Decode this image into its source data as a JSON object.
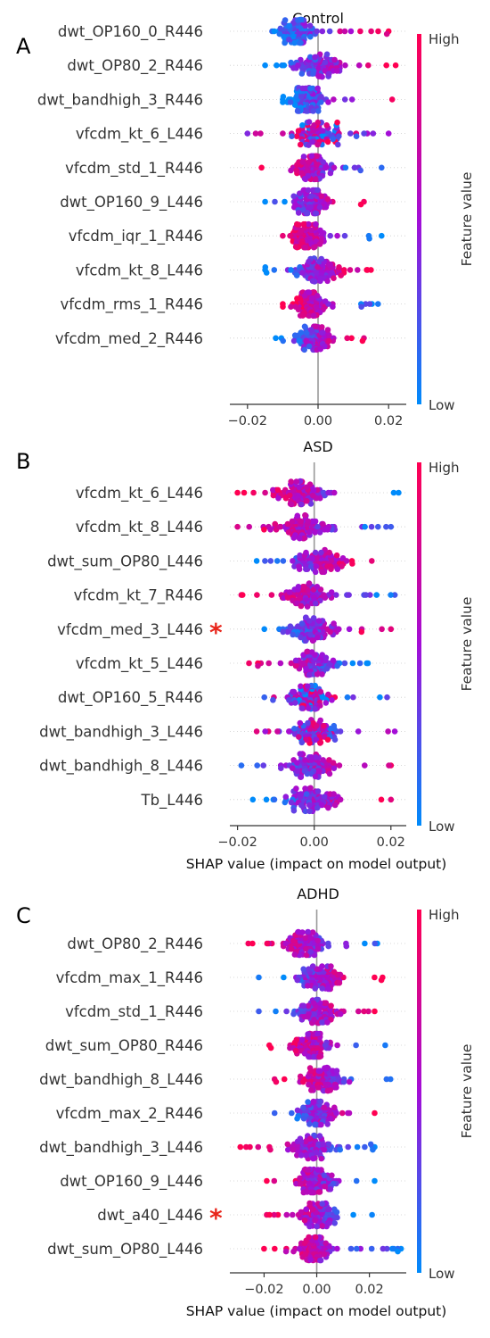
{
  "chart_data": [
    {
      "type": "scatter",
      "panel_label": "A",
      "title": "Control",
      "xlabel": "",
      "xlim": [
        -0.025,
        0.025
      ],
      "xticks": [
        {
          "v": -0.02,
          "label": "−0.02"
        },
        {
          "v": 0,
          "label": "0.00"
        },
        {
          "v": 0.02,
          "label": "0.02"
        }
      ],
      "colorbar": {
        "high": "High",
        "low": "Low",
        "label": "Feature value"
      },
      "features": [
        {
          "name": "dwt_OP160_0_R446",
          "min": -0.013,
          "max": 0.02,
          "peak": -0.006,
          "spread": 0.006,
          "mode": "lowneg",
          "star": false
        },
        {
          "name": "dwt_OP80_2_R446",
          "min": -0.015,
          "max": 0.022,
          "peak": 0.0,
          "spread": 0.008,
          "mode": "lowneg",
          "star": false
        },
        {
          "name": "dwt_bandhigh_3_R446",
          "min": -0.01,
          "max": 0.021,
          "peak": -0.003,
          "spread": 0.006,
          "mode": "lowneg",
          "star": false
        },
        {
          "name": "vfcdm_kt_6_L446",
          "min": -0.02,
          "max": 0.02,
          "peak": 0.0,
          "spread": 0.007,
          "mode": "mixed",
          "star": false
        },
        {
          "name": "vfcdm_std_1_R446",
          "min": -0.016,
          "max": 0.018,
          "peak": -0.002,
          "spread": 0.006,
          "mode": "highneg",
          "star": false
        },
        {
          "name": "dwt_OP160_9_L446",
          "min": -0.015,
          "max": 0.013,
          "peak": -0.002,
          "spread": 0.006,
          "mode": "lowneg",
          "star": false
        },
        {
          "name": "vfcdm_iqr_1_R446",
          "min": -0.01,
          "max": 0.018,
          "peak": -0.003,
          "spread": 0.005,
          "mode": "highneg",
          "star": false
        },
        {
          "name": "vfcdm_kt_8_L446",
          "min": -0.015,
          "max": 0.015,
          "peak": 0.0,
          "spread": 0.007,
          "mode": "lowneg",
          "star": false
        },
        {
          "name": "vfcdm_rms_1_R446",
          "min": -0.01,
          "max": 0.017,
          "peak": -0.002,
          "spread": 0.005,
          "mode": "highneg",
          "star": false
        },
        {
          "name": "vfcdm_med_2_R446",
          "min": -0.012,
          "max": 0.013,
          "peak": -0.001,
          "spread": 0.006,
          "mode": "lowneg",
          "star": false
        }
      ]
    },
    {
      "type": "scatter",
      "panel_label": "B",
      "title": "ASD",
      "xlabel": "SHAP value (impact on model output)",
      "xlim": [
        -0.022,
        0.024
      ],
      "xticks": [
        {
          "v": -0.02,
          "label": "−0.02"
        },
        {
          "v": 0,
          "label": "0.00"
        },
        {
          "v": 0.02,
          "label": "0.02"
        }
      ],
      "colorbar": {
        "high": "High",
        "low": "Low",
        "label": "Feature value"
      },
      "features": [
        {
          "name": "vfcdm_kt_6_L446",
          "min": -0.02,
          "max": 0.022,
          "peak": -0.004,
          "spread": 0.008,
          "mode": "highneg",
          "star": false
        },
        {
          "name": "vfcdm_kt_8_L446",
          "min": -0.02,
          "max": 0.02,
          "peak": -0.003,
          "spread": 0.008,
          "mode": "highneg",
          "star": false
        },
        {
          "name": "dwt_sum_OP80_L446",
          "min": -0.015,
          "max": 0.015,
          "peak": 0.002,
          "spread": 0.007,
          "mode": "lowneg",
          "star": false
        },
        {
          "name": "vfcdm_kt_7_R446",
          "min": -0.019,
          "max": 0.021,
          "peak": -0.002,
          "spread": 0.007,
          "mode": "highneg",
          "star": false
        },
        {
          "name": "vfcdm_med_3_L446",
          "min": -0.013,
          "max": 0.02,
          "peak": 0.0,
          "spread": 0.007,
          "mode": "lowneg",
          "star": true
        },
        {
          "name": "vfcdm_kt_5_L446",
          "min": -0.017,
          "max": 0.014,
          "peak": 0.0,
          "spread": 0.006,
          "mode": "highneg",
          "star": false
        },
        {
          "name": "dwt_OP160_5_R446",
          "min": -0.013,
          "max": 0.019,
          "peak": -0.001,
          "spread": 0.006,
          "mode": "mixed",
          "star": false
        },
        {
          "name": "dwt_bandhigh_3_L446",
          "min": -0.015,
          "max": 0.021,
          "peak": 0.0,
          "spread": 0.007,
          "mode": "mixed",
          "star": false
        },
        {
          "name": "dwt_bandhigh_8_L446",
          "min": -0.019,
          "max": 0.02,
          "peak": 0.0,
          "spread": 0.007,
          "mode": "lowneg",
          "star": false
        },
        {
          "name": "Tb_L446",
          "min": -0.016,
          "max": 0.02,
          "peak": 0.0,
          "spread": 0.007,
          "mode": "lowneg",
          "star": false
        }
      ]
    },
    {
      "type": "scatter",
      "panel_label": "C",
      "title": "ADHD",
      "xlabel": "SHAP value (impact on model output)",
      "xlim": [
        -0.033,
        0.034
      ],
      "xticks": [
        {
          "v": -0.02,
          "label": "−0.02"
        },
        {
          "v": 0,
          "label": "0.00"
        },
        {
          "v": 0.02,
          "label": "0.02"
        }
      ],
      "colorbar": {
        "high": "High",
        "low": "Low",
        "label": "Feature value"
      },
      "features": [
        {
          "name": "dwt_OP80_2_R446",
          "min": -0.026,
          "max": 0.023,
          "peak": -0.004,
          "spread": 0.009,
          "mode": "highneg",
          "star": false
        },
        {
          "name": "vfcdm_max_1_R446",
          "min": -0.022,
          "max": 0.025,
          "peak": 0.002,
          "spread": 0.009,
          "mode": "lowneg",
          "star": false
        },
        {
          "name": "vfcdm_std_1_R446",
          "min": -0.022,
          "max": 0.022,
          "peak": 0.0,
          "spread": 0.008,
          "mode": "lowneg",
          "star": false
        },
        {
          "name": "dwt_sum_OP80_R446",
          "min": -0.018,
          "max": 0.026,
          "peak": -0.002,
          "spread": 0.008,
          "mode": "highneg",
          "star": false
        },
        {
          "name": "dwt_bandhigh_8_L446",
          "min": -0.016,
          "max": 0.028,
          "peak": 0.002,
          "spread": 0.008,
          "mode": "highneg",
          "star": false
        },
        {
          "name": "vfcdm_max_2_R446",
          "min": -0.016,
          "max": 0.022,
          "peak": 0.0,
          "spread": 0.007,
          "mode": "lowneg",
          "star": false
        },
        {
          "name": "dwt_bandhigh_3_L446",
          "min": -0.029,
          "max": 0.022,
          "peak": -0.002,
          "spread": 0.009,
          "mode": "highneg",
          "star": false
        },
        {
          "name": "dwt_OP160_9_L446",
          "min": -0.019,
          "max": 0.022,
          "peak": 0.0,
          "spread": 0.008,
          "mode": "highneg",
          "star": false
        },
        {
          "name": "dwt_a40_L446",
          "min": -0.019,
          "max": 0.021,
          "peak": 0.0,
          "spread": 0.008,
          "mode": "highneg",
          "star": true
        },
        {
          "name": "dwt_sum_OP80_L446",
          "min": -0.02,
          "max": 0.032,
          "peak": 0.0,
          "spread": 0.008,
          "mode": "highneg",
          "star": false
        }
      ]
    }
  ],
  "colors": {
    "high": "#ff0052",
    "mid": "#a40dd7",
    "low": "#008bfb",
    "star": "#e8261c",
    "zero_line": "#999999"
  }
}
